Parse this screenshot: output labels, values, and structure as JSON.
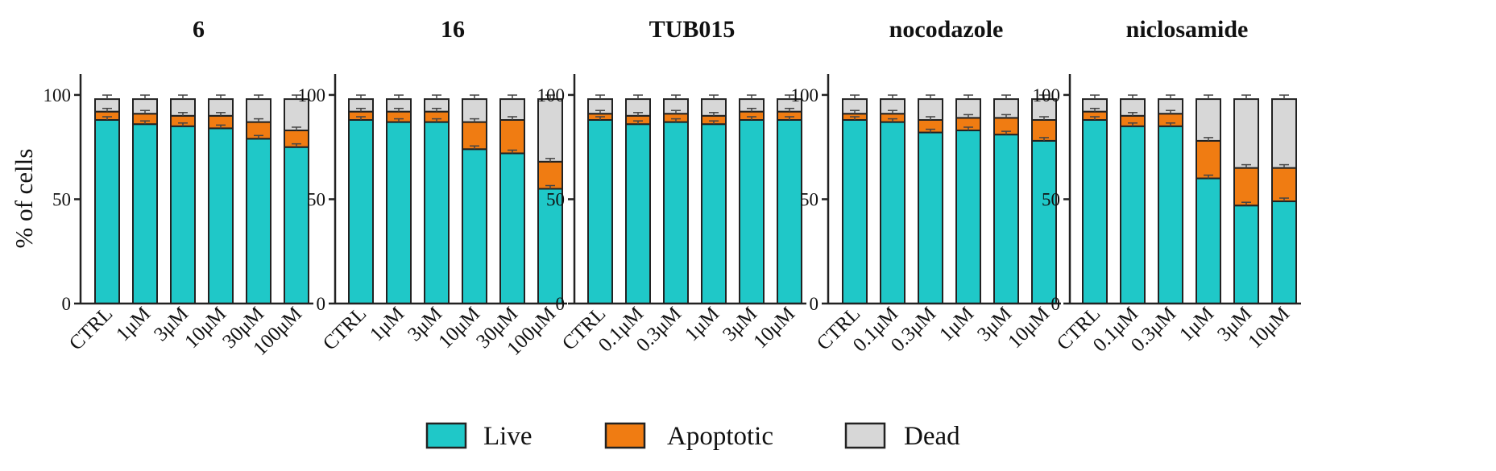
{
  "chart_data": [
    {
      "type": "bar",
      "stacked": true,
      "title": "6",
      "ylabel": "% of cells",
      "ylim": [
        0,
        110
      ],
      "yticks": [
        0,
        50,
        100
      ],
      "categories": [
        "CTRL",
        "1μM",
        "3μM",
        "10μM",
        "30μM",
        "100μM"
      ],
      "series": [
        {
          "name": "Live",
          "values": [
            88,
            86,
            85,
            84,
            79,
            75
          ]
        },
        {
          "name": "Apoptotic",
          "values": [
            4,
            5,
            5,
            6,
            8,
            8
          ]
        },
        {
          "name": "Dead",
          "values": [
            6,
            7,
            8,
            8,
            11,
            15
          ]
        }
      ]
    },
    {
      "type": "bar",
      "stacked": true,
      "title": "16",
      "ylabel": "",
      "ylim": [
        0,
        110
      ],
      "yticks": [
        0,
        50,
        100
      ],
      "categories": [
        "CTRL",
        "1μM",
        "3μM",
        "10μM",
        "30μM",
        "100μM"
      ],
      "series": [
        {
          "name": "Live",
          "values": [
            88,
            87,
            87,
            74,
            72,
            55
          ]
        },
        {
          "name": "Apoptotic",
          "values": [
            4,
            5,
            5,
            13,
            16,
            13
          ]
        },
        {
          "name": "Dead",
          "values": [
            6,
            6,
            6,
            11,
            10,
            30
          ]
        }
      ]
    },
    {
      "type": "bar",
      "stacked": true,
      "title": "TUB015",
      "ylabel": "",
      "ylim": [
        0,
        110
      ],
      "yticks": [
        0,
        50,
        100
      ],
      "categories": [
        "CTRL",
        "0.1μM",
        "0.3μM",
        "1μM",
        "3μM",
        "10μM"
      ],
      "series": [
        {
          "name": "Live",
          "values": [
            88,
            86,
            87,
            86,
            88,
            88
          ]
        },
        {
          "name": "Apoptotic",
          "values": [
            3,
            4,
            4,
            4,
            4,
            4
          ]
        },
        {
          "name": "Dead",
          "values": [
            7,
            8,
            7,
            8,
            6,
            6
          ]
        }
      ]
    },
    {
      "type": "bar",
      "stacked": true,
      "title": "nocodazole",
      "ylabel": "",
      "ylim": [
        0,
        110
      ],
      "yticks": [
        0,
        50,
        100
      ],
      "categories": [
        "CTRL",
        "0.1μM",
        "0.3μM",
        "1μM",
        "3μM",
        "10μM"
      ],
      "series": [
        {
          "name": "Live",
          "values": [
            88,
            87,
            82,
            83,
            81,
            78
          ]
        },
        {
          "name": "Apoptotic",
          "values": [
            3,
            4,
            6,
            6,
            8,
            10
          ]
        },
        {
          "name": "Dead",
          "values": [
            7,
            7,
            10,
            9,
            9,
            10
          ]
        }
      ]
    },
    {
      "type": "bar",
      "stacked": true,
      "title": "niclosamide",
      "ylabel": "",
      "ylim": [
        0,
        110
      ],
      "yticks": [
        0,
        50,
        100
      ],
      "categories": [
        "CTRL",
        "0.1μM",
        "0.3μM",
        "1μM",
        "3μM",
        "10μM"
      ],
      "series": [
        {
          "name": "Live",
          "values": [
            88,
            85,
            85,
            60,
            47,
            49
          ]
        },
        {
          "name": "Apoptotic",
          "values": [
            4,
            5,
            6,
            18,
            18,
            16
          ]
        },
        {
          "name": "Dead",
          "values": [
            6,
            8,
            7,
            20,
            33,
            33
          ]
        }
      ]
    }
  ],
  "legend": {
    "position": "bottom-center",
    "items": [
      {
        "label": "Live",
        "color": "#1fc8c8"
      },
      {
        "label": "Apoptotic",
        "color": "#f07c12"
      },
      {
        "label": "Dead",
        "color": "#d7d7d7"
      }
    ]
  },
  "colors": {
    "Live": "#1fc8c8",
    "Apoptotic": "#f07c12",
    "Dead": "#d7d7d7",
    "stroke": "#222222"
  }
}
